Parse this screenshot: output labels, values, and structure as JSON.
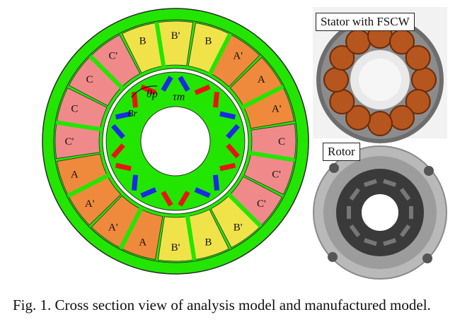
{
  "caption": "Fig. 1.  Cross section view of analysis model and manufactured model.",
  "photos": {
    "stator_label": "Stator with FSCW",
    "rotor_label": "Rotor"
  },
  "model": {
    "angle_label_theta": "θp",
    "angle_label_tau": "τm",
    "remanence_label": "Br",
    "coil_labels_outer_ring": [
      "B'",
      "B",
      "A'",
      "A",
      "A'",
      "C",
      "C'",
      "C'",
      "B'",
      "B",
      "B'",
      "A",
      "A'",
      "A'",
      "A",
      "C'",
      "C",
      "C",
      "C'",
      "B"
    ]
  },
  "colors": {
    "core": "#22e600",
    "phase_a": "#ef8a3c",
    "phase_b": "#f0e34a",
    "phase_c": "#f08a8a",
    "magnet_red": "#e81414",
    "magnet_blue": "#1a2ae8"
  }
}
